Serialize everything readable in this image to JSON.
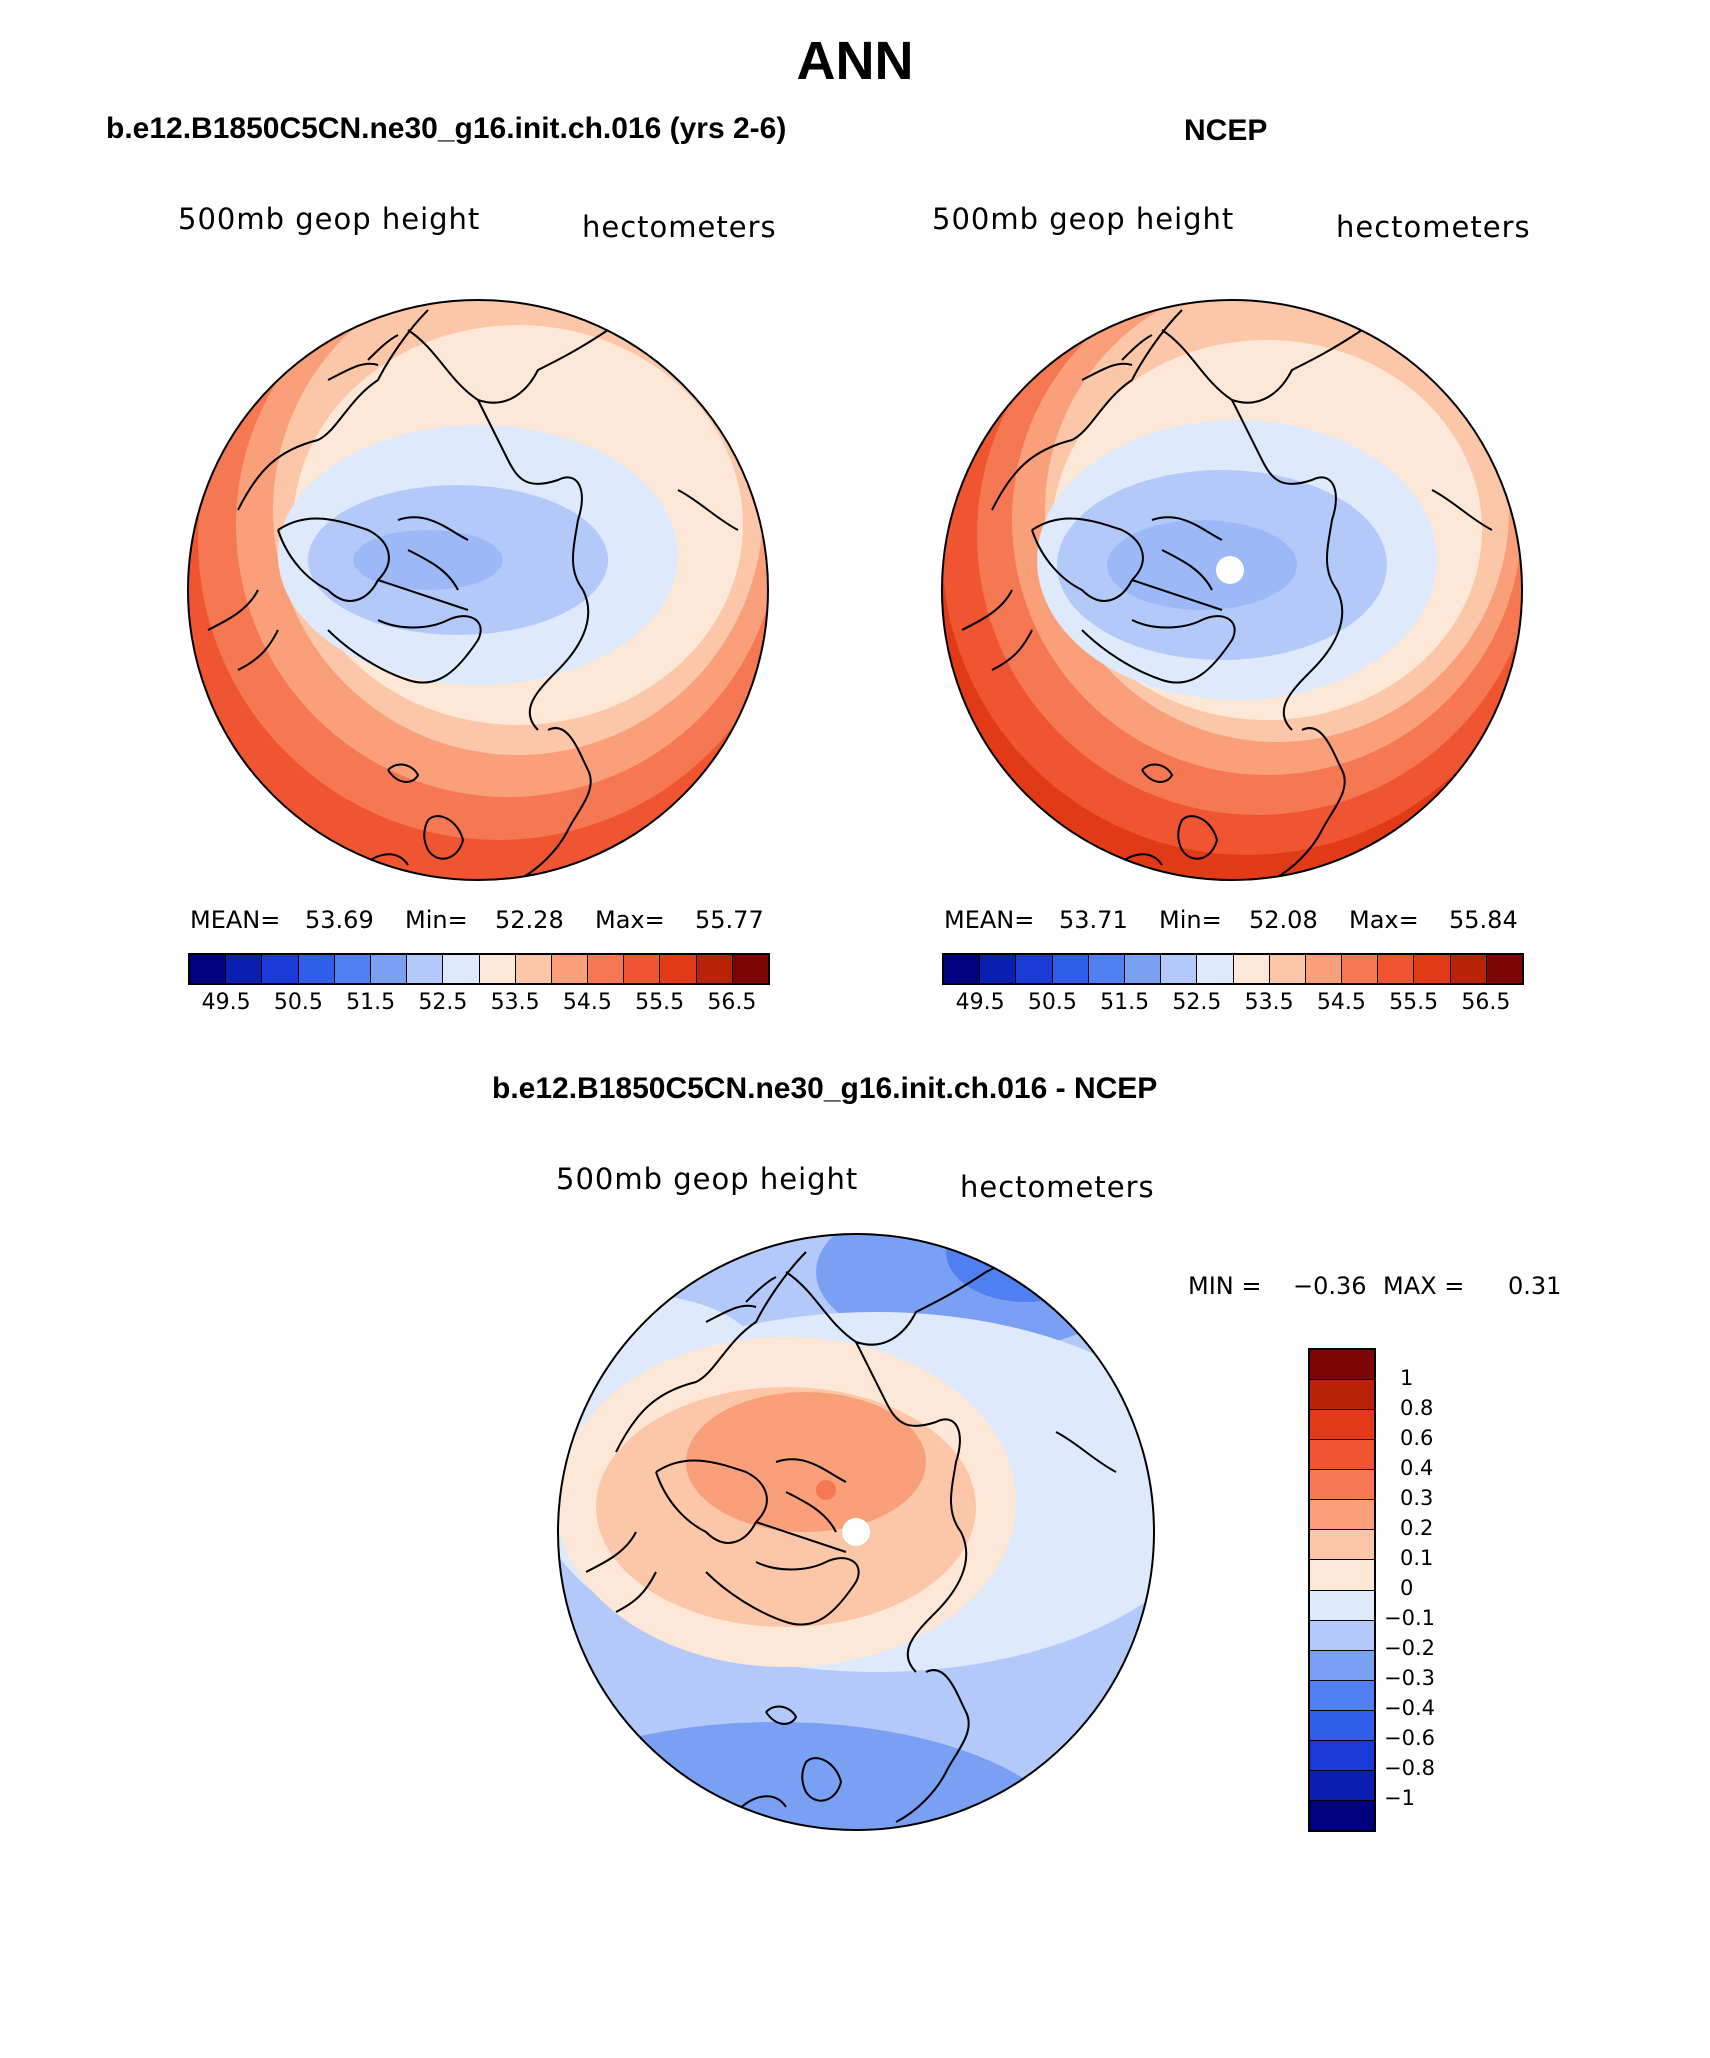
{
  "main_title": "ANN",
  "panel1": {
    "title": "b.e12.B1850C5CN.ne30_g16.init.ch.016 (yrs 2-6)",
    "variable": "500mb geop height",
    "units": "hectometers",
    "mean_label": "MEAN=",
    "mean": "53.69",
    "min_label": "Min=",
    "min": "52.28",
    "max_label": "Max=",
    "max": "55.77"
  },
  "panel2": {
    "title": "NCEP",
    "variable": "500mb geop height",
    "units": "hectometers",
    "mean_label": "MEAN=",
    "mean": "53.71",
    "min_label": "Min=",
    "min": "52.08",
    "max_label": "Max=",
    "max": "55.84"
  },
  "panel3": {
    "title": "b.e12.B1850C5CN.ne30_g16.init.ch.016 - NCEP",
    "variable": "500mb geop height",
    "units": "hectometers",
    "min_label": "MIN =",
    "min": "−0.36",
    "max_label": "MAX =",
    "max": "0.31"
  },
  "colorbar_abs": {
    "labels": [
      "49.5",
      "50.5",
      "51.5",
      "52.5",
      "53.5",
      "54.5",
      "55.5",
      "56.5"
    ],
    "colors": [
      "#00007e",
      "#0a1fb0",
      "#1a3ad8",
      "#2f5fe8",
      "#4f7ff0",
      "#7aa0f4",
      "#b3c9f9",
      "#dfe9fc",
      "#fde8d8",
      "#fcc7a8",
      "#f9a07a",
      "#f57852",
      "#ee5530",
      "#e23a16",
      "#b82308",
      "#7e0505"
    ]
  },
  "colorbar_diff": {
    "labels": [
      "1",
      "0.8",
      "0.6",
      "0.4",
      "0.3",
      "0.2",
      "0.1",
      "0",
      "−0.1",
      "−0.2",
      "−0.3",
      "−0.4",
      "−0.6",
      "−0.8",
      "−1"
    ],
    "colors": [
      "#7e0505",
      "#b82308",
      "#e23a16",
      "#ee5530",
      "#f57852",
      "#f9a07a",
      "#fcc7a8",
      "#fde8d8",
      "#dfe9fc",
      "#b3c9f9",
      "#7aa0f4",
      "#4f7ff0",
      "#2f5fe8",
      "#1a3ad8",
      "#0a1fb0",
      "#00007e"
    ]
  }
}
